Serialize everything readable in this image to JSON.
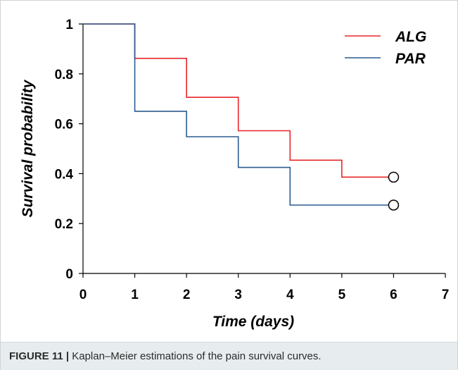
{
  "chart_data": {
    "type": "line",
    "step": true,
    "xlabel": "Time  (days)",
    "ylabel": "Survival probability",
    "xlim": [
      0,
      7
    ],
    "ylim": [
      0,
      1
    ],
    "xticks": [
      0,
      1,
      2,
      3,
      4,
      5,
      6,
      7
    ],
    "yticks": [
      {
        "value": 0,
        "label": "0"
      },
      {
        "value": 0.2,
        "label": "0.2"
      },
      {
        "value": 0.4,
        "label": "0.4"
      },
      {
        "value": 0.6,
        "label": "0.6"
      },
      {
        "value": 0.8,
        "label": "0.8"
      },
      {
        "value": 1,
        "label": "1"
      }
    ],
    "grid": false,
    "legend": "top-right",
    "series": [
      {
        "name": "ALG",
        "color": "#e8262a",
        "x": [
          0,
          1,
          2,
          3,
          4,
          5,
          6
        ],
        "y": [
          1,
          0.862,
          0.706,
          0.572,
          0.454,
          0.386,
          0.386
        ],
        "censored": [
          {
            "x": 6,
            "y": 0.386
          }
        ]
      },
      {
        "name": "PAR",
        "color": "#2b5b8f",
        "x": [
          0,
          1,
          2,
          3,
          4,
          5,
          6
        ],
        "y": [
          1,
          0.65,
          0.548,
          0.425,
          0.274,
          0.274,
          0.274
        ],
        "censored": [
          {
            "x": 6,
            "y": 0.274
          }
        ]
      }
    ]
  },
  "caption": {
    "label": "FIGURE 11 |",
    "text": " Kaplan–Meier estimations of the pain survival curves."
  }
}
